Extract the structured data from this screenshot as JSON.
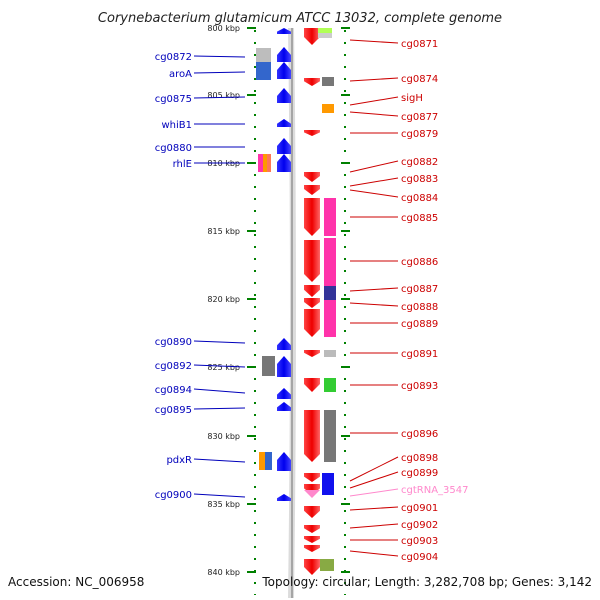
{
  "title": "Corynebacterium glutamicum ATCC 13032, complete genome",
  "accession": "Accession: NC_006958",
  "topology": "Topology: circular; Length: 3,282,708 bp; Genes: 3,142",
  "ticks": [
    {
      "label": "800 kbp"
    },
    {
      "label": "805 kbp"
    },
    {
      "label": "810 kbp"
    },
    {
      "label": "815 kbp"
    },
    {
      "label": "820 kbp"
    },
    {
      "label": "825 kbp"
    },
    {
      "label": "830 kbp"
    },
    {
      "label": "835 kbp"
    },
    {
      "label": "840 kbp"
    }
  ],
  "left_labels": [
    "cg0872",
    "aroA",
    "cg0875",
    "whiB1",
    "cg0880",
    "rhlE",
    "cg0890",
    "cg0892",
    "cg0894",
    "cg0895",
    "pdxR",
    "cg0900"
  ],
  "right_labels": [
    "cg0871",
    "cg0874",
    "sigH",
    "cg0877",
    "cg0879",
    "cg0882",
    "cg0883",
    "cg0884",
    "cg0885",
    "cg0886",
    "cg0887",
    "cg0888",
    "cg0889",
    "cg0891",
    "cg0893",
    "cg0896",
    "cg0898",
    "cg0899",
    "cgtRNA_3547",
    "cg0901",
    "cg0902",
    "cg0903",
    "cg0904"
  ],
  "colors": {
    "forward": "#0000ff",
    "reverse": "#ff0000",
    "rna": "#ff88cc",
    "backbone": "#808080",
    "tick": "#008000",
    "left_label": "#0000bb",
    "right_label": "#cc0000",
    "cog_magenta": "#ff33aa",
    "cog_green": "#33cc33",
    "cog_gray": "#777777",
    "cog_orange": "#ff9900",
    "cog_blue": "#3366cc",
    "cog_navy": "#333399"
  }
}
